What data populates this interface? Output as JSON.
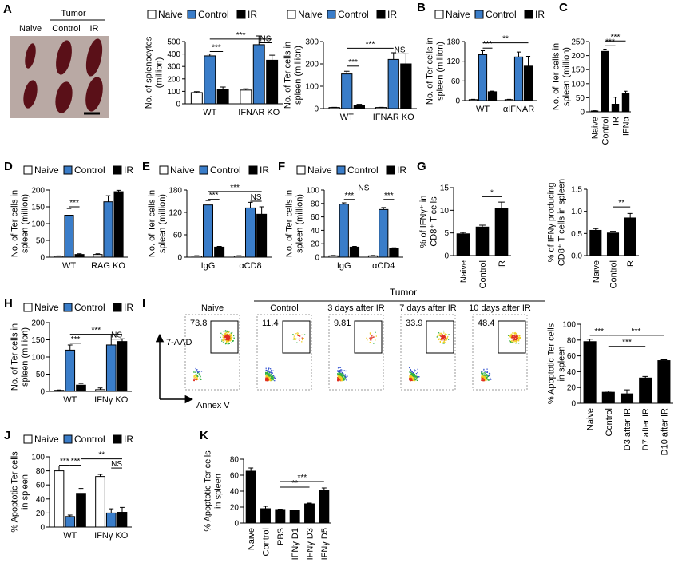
{
  "photo": {
    "panel": "A",
    "group_title": "Tumor",
    "labels": [
      "Naive",
      "Control",
      "IR"
    ]
  },
  "flow": {
    "panel": "I",
    "group_title": "Tumor",
    "titles": [
      "Naive",
      "Control",
      "3 days after IR",
      "7 days after IR",
      "10 days after IR"
    ],
    "percentages": [
      73.8,
      11.4,
      9.81,
      33.9,
      48.4
    ],
    "y_axis": "7-AAD",
    "x_axis": "Annex V"
  },
  "chart_data": [
    {
      "type": "bar",
      "ylabel": [
        "No. of splenocytes",
        "(million)"
      ],
      "categories": [
        "WT",
        "IFNAR KO"
      ],
      "ylim": [
        0,
        500
      ],
      "yticks": [
        0,
        100,
        200,
        300,
        400,
        500
      ],
      "series": [
        {
          "name": "Naive",
          "color": "#ffffff",
          "values": [
            90,
            110
          ],
          "errors": [
            8,
            10
          ]
        },
        {
          "name": "Control",
          "color": "#3a7dc9",
          "values": [
            385,
            475
          ],
          "errors": [
            15,
            70
          ]
        },
        {
          "name": "IR",
          "color": "#000000",
          "values": [
            115,
            350
          ],
          "errors": [
            20,
            40
          ]
        }
      ],
      "annotations": [
        "***",
        "***",
        "NS"
      ]
    },
    {
      "type": "bar",
      "ylabel": [
        "No. of Ter cells in",
        "spleen (million)"
      ],
      "categories": [
        "WT",
        "IFNAR KO"
      ],
      "ylim": [
        0,
        300
      ],
      "yticks": [
        0,
        100,
        200,
        300
      ],
      "series": [
        {
          "name": "Naive",
          "color": "#ffffff",
          "values": [
            5,
            5
          ],
          "errors": [
            1,
            1
          ]
        },
        {
          "name": "Control",
          "color": "#3a7dc9",
          "values": [
            155,
            220
          ],
          "errors": [
            12,
            30
          ]
        },
        {
          "name": "IR",
          "color": "#000000",
          "values": [
            15,
            200
          ],
          "errors": [
            4,
            45
          ]
        }
      ],
      "annotations": [
        "***",
        "***",
        "NS"
      ]
    },
    {
      "type": "bar",
      "panel": "B",
      "ylabel": [
        "No. of Ter cells in",
        "spleen (million)"
      ],
      "categories": [
        "WT",
        "αIFNAR"
      ],
      "ylim": [
        0,
        180
      ],
      "yticks": [
        0,
        60,
        120,
        180
      ],
      "series": [
        {
          "name": "Naive",
          "color": "#ffffff",
          "values": [
            3,
            3
          ],
          "errors": [
            1,
            1
          ]
        },
        {
          "name": "Control",
          "color": "#3a7dc9",
          "values": [
            140,
            133
          ],
          "errors": [
            12,
            15
          ]
        },
        {
          "name": "IR",
          "color": "#000000",
          "values": [
            27,
            105
          ],
          "errors": [
            2,
            30
          ]
        }
      ],
      "annotations": [
        "***",
        "**"
      ]
    },
    {
      "type": "bar",
      "panel": "C",
      "ylabel": [
        "No. of Ter cells in",
        "spleen (million)"
      ],
      "categories": [
        "Naive",
        "Control",
        "IR",
        "IFNα"
      ],
      "ylim": [
        0,
        250
      ],
      "yticks": [
        0,
        50,
        100,
        150,
        200,
        250
      ],
      "color": "#000000",
      "values": [
        3,
        215,
        27,
        65
      ],
      "errors": [
        1,
        8,
        25,
        8
      ],
      "annotations": [
        "***",
        "***"
      ]
    },
    {
      "type": "bar",
      "panel": "D",
      "ylabel": [
        "No. of Ter cells in",
        "spleen (million)"
      ],
      "categories": [
        "WT",
        "RAG KO"
      ],
      "ylim": [
        0,
        200
      ],
      "yticks": [
        0,
        50,
        100,
        150,
        200
      ],
      "series": [
        {
          "name": "Naive",
          "color": "#ffffff",
          "values": [
            3,
            8
          ],
          "errors": [
            1,
            2
          ]
        },
        {
          "name": "Control",
          "color": "#3a7dc9",
          "values": [
            125,
            165
          ],
          "errors": [
            20,
            18
          ]
        },
        {
          "name": "IR",
          "color": "#000000",
          "values": [
            8,
            195
          ],
          "errors": [
            2,
            4
          ]
        }
      ],
      "annotations": [
        "***"
      ]
    },
    {
      "type": "bar",
      "panel": "E",
      "ylabel": [
        "No. of Ter cells in",
        "spleen (million)"
      ],
      "categories": [
        "IgG",
        "αCD8"
      ],
      "ylim": [
        0,
        180
      ],
      "yticks": [
        0,
        60,
        120,
        180
      ],
      "series": [
        {
          "name": "Naive",
          "color": "#ffffff",
          "values": [
            3,
            3
          ],
          "errors": [
            1,
            1
          ]
        },
        {
          "name": "Control",
          "color": "#3a7dc9",
          "values": [
            140,
            132
          ],
          "errors": [
            12,
            15
          ]
        },
        {
          "name": "IR",
          "color": "#000000",
          "values": [
            27,
            115
          ],
          "errors": [
            2,
            20
          ]
        }
      ],
      "annotations": [
        "***",
        "***",
        "NS"
      ]
    },
    {
      "type": "bar",
      "panel": "F",
      "ylabel": [
        "No. of Ter cells in",
        "spleen (million)"
      ],
      "categories": [
        "IgG",
        "αCD4"
      ],
      "ylim": [
        0,
        100
      ],
      "yticks": [
        0,
        20,
        40,
        60,
        80,
        100
      ],
      "series": [
        {
          "name": "Naive",
          "color": "#ffffff",
          "values": [
            2,
            2
          ],
          "errors": [
            0.5,
            0.5
          ]
        },
        {
          "name": "Control",
          "color": "#3a7dc9",
          "values": [
            79,
            71
          ],
          "errors": [
            2,
            3
          ]
        },
        {
          "name": "IR",
          "color": "#000000",
          "values": [
            15,
            13
          ],
          "errors": [
            1,
            1
          ]
        }
      ],
      "annotations": [
        "***",
        "NS",
        "***"
      ]
    },
    {
      "type": "bar",
      "panel": "G",
      "ylabel": [
        "% of IFNγ⁺ in",
        "CD8⁺ T cells"
      ],
      "categories": [
        "Naive",
        "Control",
        "IR"
      ],
      "ylim": [
        0,
        15
      ],
      "yticks": [
        0,
        5,
        10,
        15
      ],
      "color": "#000000",
      "values": [
        4.8,
        6.3,
        10.5
      ],
      "errors": [
        0.3,
        0.4,
        1.3
      ],
      "annotations": [
        "*"
      ]
    },
    {
      "type": "bar",
      "ylabel": [
        "% of IFNγ producing",
        "CD8⁺ T cells in spleen"
      ],
      "categories": [
        "Naive",
        "Control",
        "IR"
      ],
      "ylim": [
        0,
        1.5
      ],
      "yticks": [
        {
          "value": 0,
          "label": "0.0"
        },
        0.5,
        {
          "value": 1,
          "label": "1.0"
        },
        1.5
      ],
      "color": "#000000",
      "values": [
        0.57,
        0.51,
        0.85
      ],
      "errors": [
        0.04,
        0.04,
        0.1
      ],
      "annotations": [
        "**"
      ]
    },
    {
      "type": "bar",
      "panel": "H",
      "ylabel": [
        "No. of Ter cells in",
        "spleen (million)"
      ],
      "categories": [
        "WT",
        "IFNγ KO"
      ],
      "ylim": [
        0,
        200
      ],
      "yticks": [
        0,
        50,
        100,
        150,
        200
      ],
      "series": [
        {
          "name": "Naive",
          "color": "#ffffff",
          "values": [
            3,
            5
          ],
          "errors": [
            1,
            5
          ]
        },
        {
          "name": "Control",
          "color": "#3a7dc9",
          "values": [
            120,
            135
          ],
          "errors": [
            15,
            30
          ]
        },
        {
          "name": "IR",
          "color": "#000000",
          "values": [
            18,
            145
          ],
          "errors": [
            5,
            8
          ]
        }
      ],
      "annotations": [
        "***",
        "***",
        "NS"
      ]
    },
    {
      "type": "bar",
      "ylabel": [
        "% Apoptotic Ter cells",
        "in spleen"
      ],
      "categories": [
        "Naive",
        "Control",
        "D3 after IR",
        "D7 after IR",
        "D10 after IR"
      ],
      "ylim": [
        0,
        100
      ],
      "yticks": [
        0,
        20,
        40,
        60,
        80,
        100
      ],
      "color": "#000000",
      "values": [
        78,
        14,
        12,
        32,
        54
      ],
      "errors": [
        3,
        1.5,
        5,
        2,
        1
      ],
      "annotations": [
        "***",
        "***",
        "***"
      ]
    },
    {
      "type": "bar",
      "panel": "J",
      "ylabel": [
        "% Apoptotic Ter cells",
        "in spleen"
      ],
      "categories": [
        "WT",
        "IFNγ KO"
      ],
      "ylim": [
        0,
        100
      ],
      "yticks": [
        0,
        20,
        40,
        60,
        80,
        100
      ],
      "series": [
        {
          "name": "Naive",
          "color": "#ffffff",
          "values": [
            80,
            72
          ],
          "errors": [
            7,
            3
          ]
        },
        {
          "name": "Control",
          "color": "#3a7dc9",
          "values": [
            15,
            20
          ],
          "errors": [
            2,
            6
          ]
        },
        {
          "name": "IR",
          "color": "#000000",
          "values": [
            48,
            21
          ],
          "errors": [
            7,
            7
          ]
        }
      ],
      "annotations": [
        "***",
        "***",
        "**",
        "NS"
      ]
    },
    {
      "type": "bar",
      "panel": "K",
      "ylabel": [
        "% Apoptotic Ter cells",
        "in spleen"
      ],
      "categories": [
        "Naive",
        "Control",
        "PBS",
        "IFNγ D1",
        "IFNγ D3",
        "IFNγ D5"
      ],
      "ylim": [
        0,
        80
      ],
      "yticks": [
        0,
        20,
        40,
        60,
        80
      ],
      "color": "#000000",
      "values": [
        65,
        18,
        17,
        16,
        24,
        41
      ],
      "errors": [
        4,
        3,
        0.5,
        0.5,
        1,
        3
      ],
      "annotations": [
        "***",
        "**"
      ]
    }
  ]
}
